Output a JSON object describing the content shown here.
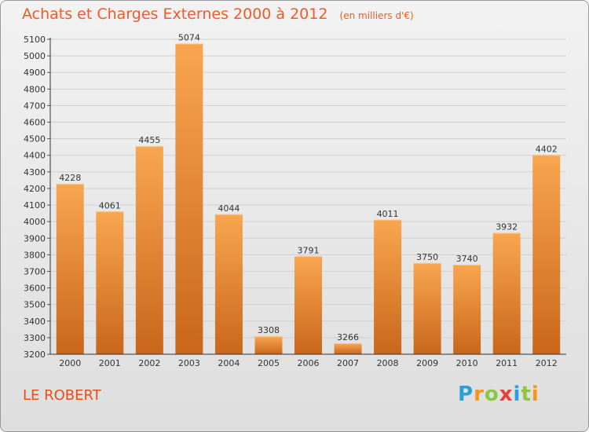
{
  "title": "Achats et Charges Externes 2000 à 2012",
  "unit": "(en milliers d'€)",
  "commune": "LE ROBERT",
  "logo": {
    "letters": [
      "P",
      "r",
      "o",
      "x",
      "i",
      "t",
      "i"
    ],
    "colors": [
      "#2a9fd6",
      "#f7941d",
      "#8dc63f",
      "#e8413c",
      "#2a9fd6",
      "#8dc63f",
      "#f7941d"
    ]
  },
  "colors": {
    "title": "#f05a28",
    "bar_light": "#f8a650",
    "bar_dark": "#c9661a",
    "grid": "#cfcfcf"
  },
  "chart_data": {
    "type": "bar",
    "title": "Achats et Charges Externes 2000 à 2012",
    "categories": [
      "2000",
      "2001",
      "2002",
      "2003",
      "2004",
      "2005",
      "2006",
      "2007",
      "2008",
      "2009",
      "2010",
      "2011",
      "2012"
    ],
    "values": [
      4228,
      4061,
      4455,
      5074,
      4044,
      3308,
      3791,
      3266,
      4011,
      3750,
      3740,
      3932,
      4402
    ],
    "ylim": [
      3200,
      5100
    ],
    "ytick_step": 100,
    "grid": true,
    "legend": "none"
  }
}
